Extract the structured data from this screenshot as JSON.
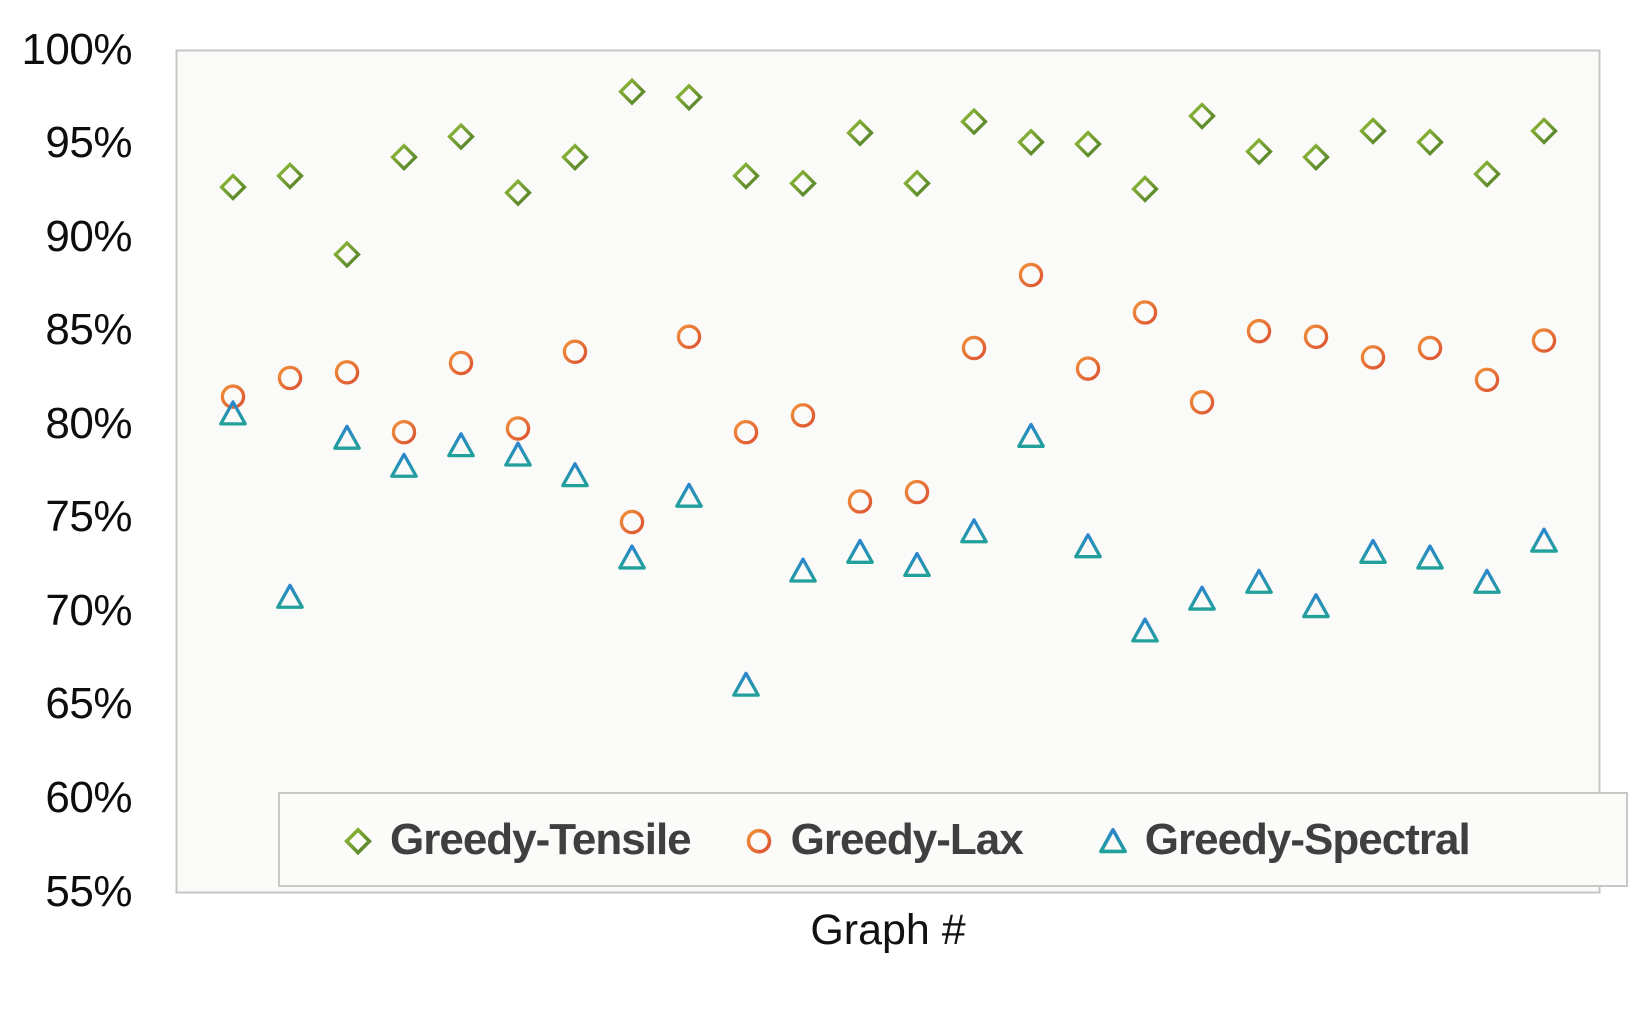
{
  "figure": {
    "background_color": "#ffffff",
    "plot_background_color": "#fafaf9",
    "plot_border_color": "#c6c5c3"
  },
  "y_axis": {
    "tick_labels": [
      "100%",
      "95%",
      "90%",
      "85%",
      "80%",
      "75%",
      "70%",
      "65%",
      "60%",
      "55%"
    ],
    "tick_values": [
      100,
      95,
      90,
      85,
      80,
      75,
      70,
      65,
      60,
      55
    ]
  },
  "x_axis": {
    "title": "Graph #"
  },
  "legend": {
    "text_color": "#3f3f3f",
    "entries": [
      {
        "label": "Greedy-Tensile",
        "marker": "diamond"
      },
      {
        "label": "Greedy-Lax",
        "marker": "circle"
      },
      {
        "label": "Greedy-Spectral",
        "marker": "triangle"
      }
    ]
  },
  "chart_data": {
    "type": "scatter",
    "title": "",
    "xlabel": "Graph #",
    "ylabel": "",
    "units": "percent",
    "ylim": [
      55,
      100
    ],
    "ytick_step": 5,
    "grid": false,
    "legend_position": "bottom-inside",
    "x": [
      1,
      2,
      3,
      4,
      5,
      6,
      7,
      8,
      9,
      10,
      11,
      12,
      13,
      14,
      15,
      16,
      17,
      18,
      19,
      20,
      21,
      22,
      23,
      24
    ],
    "series": [
      {
        "name": "Greedy-Tensile",
        "marker": "diamond",
        "color": "#70a43c",
        "values": [
          92.7,
          93.3,
          89.1,
          94.3,
          95.4,
          92.4,
          94.3,
          97.8,
          97.5,
          93.3,
          92.9,
          95.6,
          92.9,
          96.2,
          95.1,
          95.0,
          92.6,
          96.5,
          94.6,
          94.3,
          95.7,
          95.1,
          93.4,
          95.7
        ]
      },
      {
        "name": "Greedy-Lax",
        "marker": "circle",
        "color": "#e8702e",
        "values": [
          81.5,
          82.5,
          82.8,
          79.6,
          83.3,
          79.8,
          83.9,
          74.8,
          84.7,
          79.6,
          80.5,
          75.9,
          76.4,
          84.1,
          88.0,
          83.0,
          86.0,
          81.2,
          85.0,
          84.7,
          83.6,
          84.1,
          82.4,
          84.5
        ]
      },
      {
        "name": "Greedy-Spectral",
        "marker": "triangle",
        "color": "#2b93c2",
        "values": [
          80.6,
          70.8,
          79.3,
          77.8,
          78.9,
          78.4,
          77.3,
          72.9,
          76.2,
          66.1,
          72.2,
          73.2,
          72.5,
          74.3,
          79.4,
          73.5,
          69.0,
          70.7,
          71.6,
          70.3,
          73.2,
          72.9,
          71.6,
          73.8
        ]
      }
    ]
  }
}
